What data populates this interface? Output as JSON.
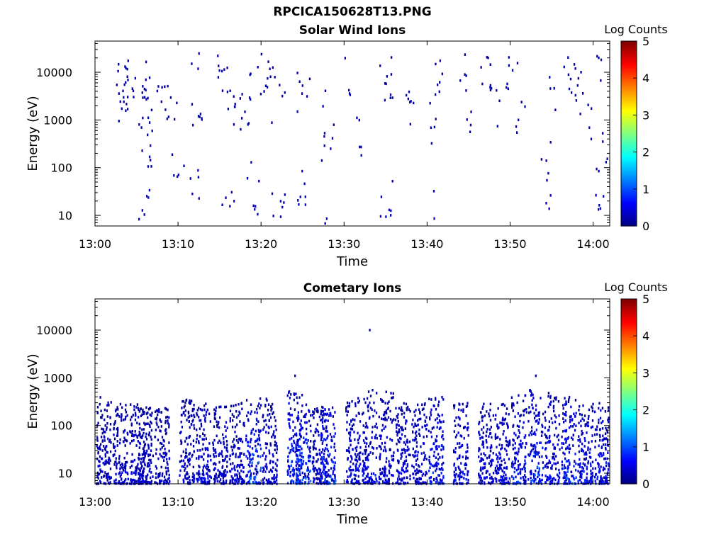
{
  "figure": {
    "title": "RPCICA150628T13.PNG"
  },
  "colorbar": {
    "label": "Log Counts",
    "ticks": [
      "0",
      "1",
      "2",
      "3",
      "4",
      "5"
    ],
    "range": [
      0,
      5
    ],
    "colormap": "jet"
  },
  "chart_data": [
    {
      "type": "heatmap",
      "title": "Solar Wind Ions",
      "xlabel": "Time",
      "ylabel": "Energy (eV)",
      "x_range": [
        "13:00",
        "14:02"
      ],
      "x_ticks": [
        "13:00",
        "13:10",
        "13:20",
        "13:30",
        "13:40",
        "13:50",
        "14:00"
      ],
      "ylim": [
        6,
        45000
      ],
      "yscale": "log",
      "y_ticks": [
        "10",
        "100",
        "1000",
        "10000"
      ],
      "clim": [
        0,
        5
      ],
      "description_of_values": "sparse isolated counts across 10 eV to 15 keV, mostly log count 0-0.3",
      "points": [
        [
          "13:03",
          8000,
          0.2
        ],
        [
          "13:03",
          3000,
          0.2
        ],
        [
          "13:03",
          1500,
          0.2
        ],
        [
          "13:04",
          8000,
          0.2
        ],
        [
          "13:04",
          2000,
          0.2
        ],
        [
          "13:06",
          8000,
          0.2
        ],
        [
          "13:06",
          3000,
          0.2
        ],
        [
          "13:06",
          600,
          0.2
        ],
        [
          "13:06",
          250,
          0.2
        ],
        [
          "13:06",
          12,
          0.3
        ],
        [
          "13:08",
          3500,
          0.2
        ],
        [
          "13:09",
          1500,
          0.2
        ],
        [
          "13:10",
          150,
          0.2
        ],
        [
          "13:12",
          16000,
          0.2
        ],
        [
          "13:12",
          1800,
          0.2
        ],
        [
          "13:12",
          60,
          0.3
        ],
        [
          "13:15",
          9000,
          0.2
        ],
        [
          "13:16",
          5000,
          0.2
        ],
        [
          "13:16",
          1200,
          0.2
        ],
        [
          "13:16",
          12,
          0.3
        ],
        [
          "13:18",
          5000,
          0.2
        ],
        [
          "13:18",
          1500,
          0.2
        ],
        [
          "13:19",
          100,
          0.3
        ],
        [
          "13:19",
          12,
          0.3
        ],
        [
          "13:20",
          9000,
          0.2
        ],
        [
          "13:21",
          8000,
          0.2
        ],
        [
          "13:22",
          2000,
          0.2
        ],
        [
          "13:22",
          20,
          0.3
        ],
        [
          "13:25",
          4000,
          0.2
        ],
        [
          "13:25",
          40,
          0.3
        ],
        [
          "13:28",
          2000,
          0.2
        ],
        [
          "13:28",
          300,
          0.2
        ],
        [
          "13:28",
          10,
          0.3
        ],
        [
          "13:30",
          8000,
          0.2
        ],
        [
          "13:31",
          1500,
          0.2
        ],
        [
          "13:32",
          200,
          0.2
        ],
        [
          "13:35",
          12000,
          0.2
        ],
        [
          "13:35",
          3000,
          0.2
        ],
        [
          "13:35",
          20,
          0.3
        ],
        [
          "13:37",
          5000,
          0.2
        ],
        [
          "13:38",
          1500,
          0.2
        ],
        [
          "13:41",
          9000,
          0.2
        ],
        [
          "13:41",
          900,
          0.2
        ],
        [
          "13:41",
          12,
          0.3
        ],
        [
          "13:44",
          10000,
          0.2
        ],
        [
          "13:45",
          1500,
          0.2
        ],
        [
          "13:47",
          11000,
          0.2
        ],
        [
          "13:48",
          2000,
          0.2
        ],
        [
          "13:50",
          9000,
          0.2
        ],
        [
          "13:51",
          1200,
          0.2
        ],
        [
          "13:54",
          150,
          0.2
        ],
        [
          "13:54",
          10,
          0.3
        ],
        [
          "13:55",
          3000,
          0.2
        ],
        [
          "13:57",
          9000,
          0.2
        ],
        [
          "13:58",
          6000,
          0.2
        ],
        [
          "13:59",
          1000,
          0.2
        ],
        [
          "14:01",
          9000,
          0.2
        ],
        [
          "14:01",
          200,
          0.2
        ],
        [
          "14:01",
          10,
          0.3
        ]
      ]
    },
    {
      "type": "heatmap",
      "title": "Cometary Ions",
      "xlabel": "Time",
      "ylabel": "Energy (eV)",
      "x_range": [
        "13:00",
        "14:02"
      ],
      "x_ticks": [
        "13:00",
        "13:10",
        "13:20",
        "13:30",
        "13:40",
        "13:50",
        "14:00"
      ],
      "ylim": [
        6,
        45000
      ],
      "yscale": "log",
      "y_ticks": [
        "10",
        "100",
        "1000",
        "10000"
      ],
      "clim": [
        0,
        5
      ],
      "description_of_values": "dense counts concentrated between 6 and 500 eV, log counts mostly 0-1, peaks near 1.3",
      "bursts": [
        {
          "t": "13:01",
          "emax": 400,
          "peak": 0.6
        },
        {
          "t": "13:03",
          "emax": 300,
          "peak": 0.6
        },
        {
          "t": "13:05",
          "emax": 300,
          "peak": 0.7
        },
        {
          "t": "13:06",
          "emax": 250,
          "peak": 0.6
        },
        {
          "t": "13:08",
          "emax": 250,
          "peak": 0.5
        },
        {
          "t": "13:11",
          "emax": 400,
          "peak": 0.6
        },
        {
          "t": "13:13",
          "emax": 300,
          "peak": 0.8
        },
        {
          "t": "13:15",
          "emax": 250,
          "peak": 0.6
        },
        {
          "t": "13:17",
          "emax": 300,
          "peak": 0.7
        },
        {
          "t": "13:19",
          "emax": 400,
          "peak": 1.3
        },
        {
          "t": "13:21",
          "emax": 400,
          "peak": 0.7
        },
        {
          "t": "13:24",
          "emax": 1100,
          "peak": 1.2
        },
        {
          "t": "13:25",
          "emax": 300,
          "peak": 1.3
        },
        {
          "t": "13:27",
          "emax": 250,
          "peak": 0.7
        },
        {
          "t": "13:28",
          "emax": 250,
          "peak": 1.2
        },
        {
          "t": "13:31",
          "emax": 400,
          "peak": 0.8
        },
        {
          "t": "13:33",
          "emax": 10000,
          "peak": 0.9
        },
        {
          "t": "13:35",
          "emax": 600,
          "peak": 0.8
        },
        {
          "t": "13:37",
          "emax": 300,
          "peak": 0.7
        },
        {
          "t": "13:39",
          "emax": 300,
          "peak": 0.7
        },
        {
          "t": "13:41",
          "emax": 400,
          "peak": 1.1
        },
        {
          "t": "13:44",
          "emax": 300,
          "peak": 0.9
        },
        {
          "t": "13:47",
          "emax": 300,
          "peak": 0.7
        },
        {
          "t": "13:49",
          "emax": 300,
          "peak": 0.8
        },
        {
          "t": "13:51",
          "emax": 500,
          "peak": 1.0
        },
        {
          "t": "13:53",
          "emax": 1100,
          "peak": 1.3
        },
        {
          "t": "13:55",
          "emax": 500,
          "peak": 0.8
        },
        {
          "t": "13:57",
          "emax": 400,
          "peak": 1.2
        },
        {
          "t": "13:59",
          "emax": 300,
          "peak": 0.9
        },
        {
          "t": "14:01",
          "emax": 300,
          "peak": 1.0
        }
      ]
    }
  ]
}
